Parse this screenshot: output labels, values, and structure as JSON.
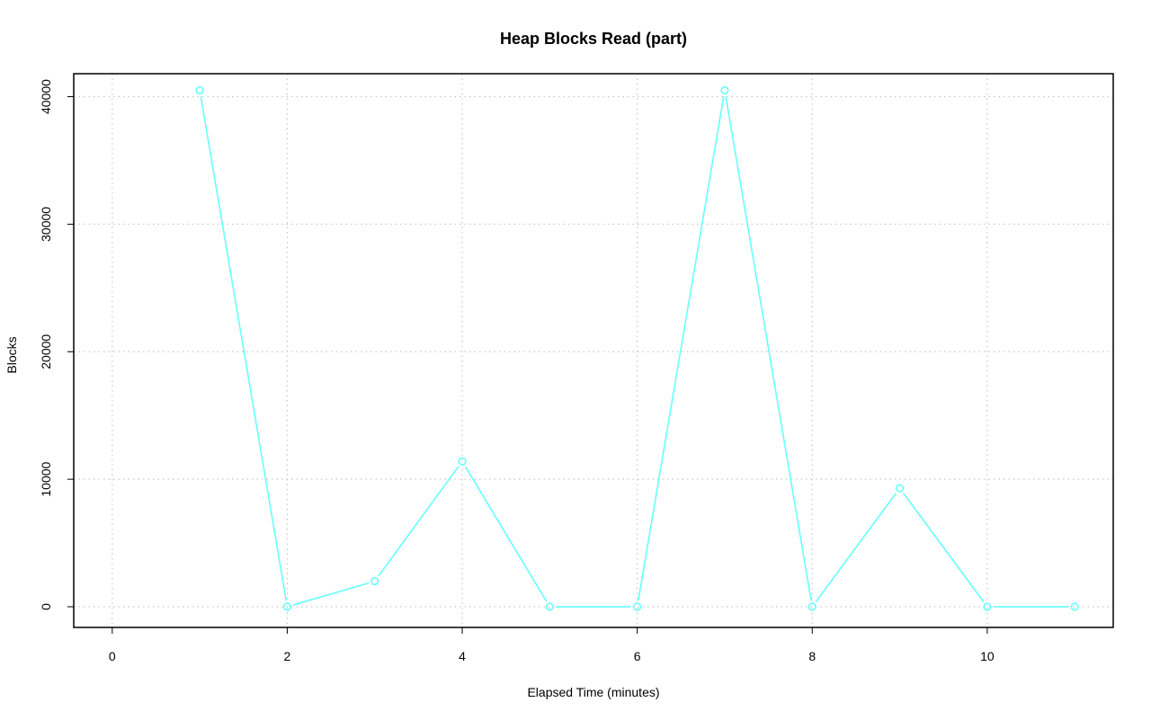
{
  "chart_data": {
    "type": "line",
    "title": "Heap Blocks Read (part)",
    "xlabel": "Elapsed Time (minutes)",
    "ylabel": "Blocks",
    "xlim": [
      -0.44,
      11.44
    ],
    "ylim": [
      -1620,
      41800
    ],
    "x_ticks": [
      0,
      2,
      4,
      6,
      8,
      10
    ],
    "y_ticks": [
      0,
      10000,
      20000,
      30000,
      40000
    ],
    "grid": true,
    "series": [
      {
        "color": "#66ffff",
        "x": [
          1,
          2,
          3,
          4,
          5,
          6,
          7,
          8,
          9,
          10,
          11
        ],
        "values": [
          40500,
          0,
          2000,
          11400,
          0,
          0,
          40500,
          0,
          9300,
          0,
          0
        ]
      }
    ]
  }
}
